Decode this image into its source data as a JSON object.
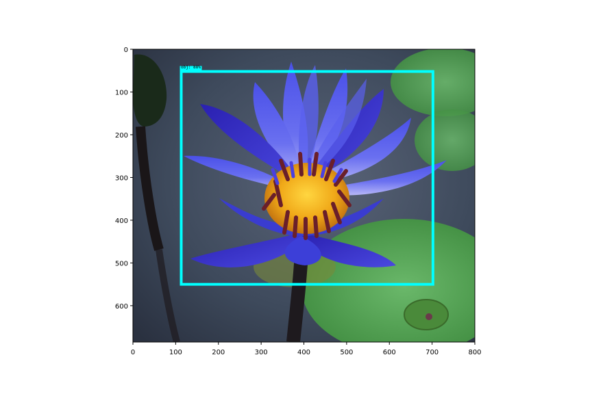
{
  "image_axes": {
    "x_ticks": [
      "0",
      "100",
      "200",
      "300",
      "400",
      "500",
      "600",
      "700",
      "800"
    ],
    "y_ticks": [
      "0",
      "100",
      "200",
      "300",
      "400",
      "500",
      "600"
    ],
    "x_range": [
      0,
      800
    ],
    "y_range": [
      0,
      685
    ],
    "y_inverted": true,
    "grid": false
  },
  "detection": {
    "label": "obj: 88%",
    "box_color": "#00ffff",
    "box_data": {
      "x_min": 113,
      "y_min": 52,
      "x_max": 702,
      "y_max": 550
    }
  },
  "photo": {
    "subject": "blue water lily",
    "colors": {
      "background": "#3e4a5c",
      "petal": "#3c3fd8",
      "petal_light": "#8a8cf5",
      "center": "#f0a818",
      "stamen": "#6a1f2a",
      "lily_pad": "#4a9a4a",
      "stem": "#1e1a1e"
    }
  }
}
